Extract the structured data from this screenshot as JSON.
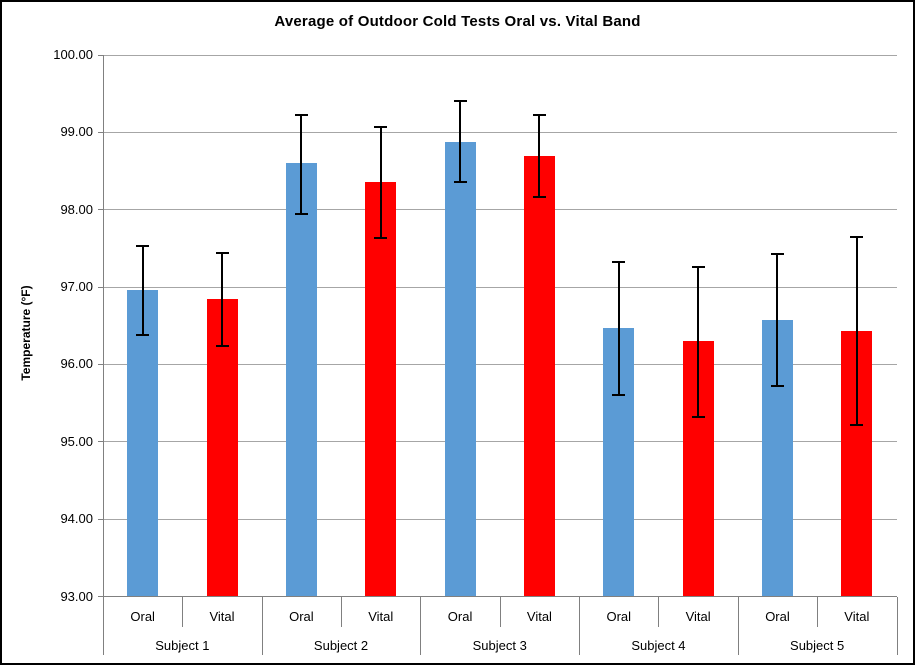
{
  "chart_data": {
    "type": "bar",
    "title": "Average of Outdoor Cold Tests Oral vs. Vital Band",
    "ylabel": "Temperature (°F)",
    "xlabel": "",
    "ylim": [
      93,
      100
    ],
    "ytick_step": 1,
    "ytick_decimals": 2,
    "ytick_labels": [
      "100.00",
      "99.00",
      "98.00",
      "97.00",
      "96.00",
      "95.00",
      "94.00",
      "93.00"
    ],
    "grid": true,
    "legend_position": "none",
    "groups": [
      "Subject 1",
      "Subject 2",
      "Subject 3",
      "Subject 4",
      "Subject 5"
    ],
    "sub_categories": [
      "Oral",
      "Vital"
    ],
    "series": [
      {
        "name": "Oral",
        "color": "#5B9BD5",
        "values": [
          96.96,
          98.6,
          98.88,
          96.47,
          96.58
        ],
        "error_high": [
          97.53,
          99.22,
          99.4,
          97.33,
          97.43
        ],
        "error_low": [
          96.38,
          97.95,
          98.36,
          95.61,
          95.72
        ]
      },
      {
        "name": "Vital",
        "color": "#FF0000",
        "values": [
          96.84,
          98.36,
          98.7,
          96.3,
          96.43
        ],
        "error_high": [
          97.44,
          99.07,
          99.23,
          97.26,
          97.65
        ],
        "error_low": [
          96.24,
          97.64,
          98.16,
          95.32,
          95.22
        ]
      }
    ],
    "style": {
      "error_bar_color": "#000000",
      "gridline_color": "#A6A6A6",
      "axis_line_color": "#808080",
      "bar_fill_blue": "#5B9BD5",
      "bar_fill_red": "#FF0000",
      "background": "#FFFFFF",
      "border": "#000000"
    }
  }
}
